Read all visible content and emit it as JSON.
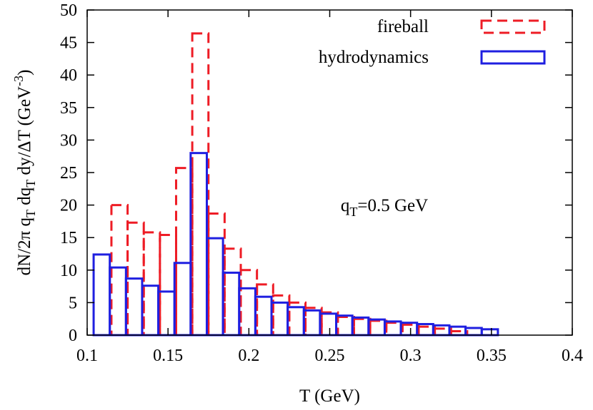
{
  "chart_data": {
    "type": "bar",
    "style": "histogram-steps",
    "xlabel": "T (GeV)",
    "ylabel": "dN/2π q_T dq_T dy/ΔT (GeV^-3)",
    "xlim": [
      0.1,
      0.4
    ],
    "ylim": [
      0,
      50
    ],
    "xticks": [
      "0.1",
      "0.15",
      "0.2",
      "0.25",
      "0.3",
      "0.35",
      "0.4"
    ],
    "yticks": [
      "0",
      "5",
      "10",
      "15",
      "20",
      "25",
      "30",
      "35",
      "40",
      "45",
      "50"
    ],
    "annotation": "q_T=0.5 GeV",
    "legend_position": "top-right",
    "grid": false,
    "series": [
      {
        "name": "fireball",
        "color": "#ee1c25",
        "line_style": "dashed",
        "bins": [
          [
            0.115,
            0.125,
            20.0
          ],
          [
            0.125,
            0.135,
            17.3
          ],
          [
            0.135,
            0.145,
            15.8
          ],
          [
            0.145,
            0.155,
            15.4
          ],
          [
            0.155,
            0.165,
            25.7
          ],
          [
            0.165,
            0.175,
            46.4
          ],
          [
            0.175,
            0.185,
            18.7
          ],
          [
            0.185,
            0.195,
            13.3
          ],
          [
            0.195,
            0.205,
            10.0
          ],
          [
            0.205,
            0.215,
            7.8
          ],
          [
            0.215,
            0.225,
            6.1
          ],
          [
            0.225,
            0.235,
            5.0
          ],
          [
            0.235,
            0.245,
            4.2
          ],
          [
            0.245,
            0.255,
            3.5
          ],
          [
            0.255,
            0.265,
            2.8
          ],
          [
            0.265,
            0.275,
            2.5
          ],
          [
            0.275,
            0.285,
            2.2
          ],
          [
            0.285,
            0.295,
            1.9
          ],
          [
            0.295,
            0.305,
            1.6
          ],
          [
            0.305,
            0.315,
            1.3
          ],
          [
            0.315,
            0.325,
            1.0
          ],
          [
            0.325,
            0.335,
            0.6
          ]
        ]
      },
      {
        "name": "hydrodynamics",
        "color": "#1f1fe0",
        "line_style": "solid",
        "bins": [
          [
            0.104,
            0.114,
            12.4
          ],
          [
            0.114,
            0.124,
            10.4
          ],
          [
            0.124,
            0.134,
            8.7
          ],
          [
            0.134,
            0.144,
            7.6
          ],
          [
            0.144,
            0.154,
            6.7
          ],
          [
            0.154,
            0.164,
            11.1
          ],
          [
            0.164,
            0.174,
            28.0
          ],
          [
            0.174,
            0.184,
            14.9
          ],
          [
            0.184,
            0.194,
            9.6
          ],
          [
            0.194,
            0.204,
            7.2
          ],
          [
            0.204,
            0.214,
            5.9
          ],
          [
            0.214,
            0.224,
            5.0
          ],
          [
            0.224,
            0.234,
            4.3
          ],
          [
            0.234,
            0.244,
            3.8
          ],
          [
            0.244,
            0.254,
            3.3
          ],
          [
            0.254,
            0.264,
            3.0
          ],
          [
            0.264,
            0.274,
            2.7
          ],
          [
            0.274,
            0.284,
            2.4
          ],
          [
            0.284,
            0.294,
            2.1
          ],
          [
            0.294,
            0.304,
            1.9
          ],
          [
            0.304,
            0.314,
            1.7
          ],
          [
            0.314,
            0.324,
            1.5
          ],
          [
            0.324,
            0.334,
            1.3
          ],
          [
            0.334,
            0.344,
            1.1
          ],
          [
            0.344,
            0.354,
            0.9
          ]
        ]
      }
    ]
  }
}
